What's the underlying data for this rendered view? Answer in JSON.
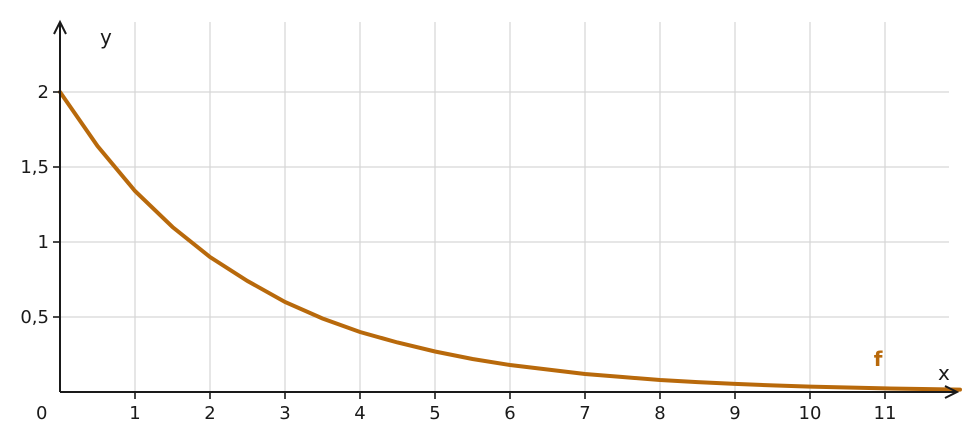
{
  "chart_data": {
    "type": "line",
    "xlabel": "x",
    "ylabel": "y",
    "xlim": [
      0,
      12
    ],
    "ylim": [
      0,
      2.5
    ],
    "origin_label": "0",
    "x_ticks": [
      1,
      2,
      3,
      4,
      5,
      6,
      7,
      8,
      9,
      10,
      11
    ],
    "x_tick_labels": [
      "1",
      "2",
      "3",
      "4",
      "5",
      "6",
      "7",
      "8",
      "9",
      "10",
      "11"
    ],
    "y_ticks": [
      0.5,
      1,
      1.5,
      2
    ],
    "y_tick_labels": [
      "0,5",
      "1",
      "1,5",
      "2"
    ],
    "grid": true,
    "series": [
      {
        "name": "f",
        "color": "#b8690b",
        "x": [
          0,
          0.5,
          1,
          1.5,
          2,
          2.5,
          3,
          3.5,
          4,
          4.5,
          5,
          5.5,
          6,
          6.5,
          7,
          7.5,
          8,
          8.5,
          9,
          9.5,
          10,
          10.5,
          11,
          11.5,
          12
        ],
        "y": [
          2,
          1.64,
          1.34,
          1.1,
          0.9,
          0.74,
          0.6,
          0.49,
          0.4,
          0.33,
          0.27,
          0.22,
          0.18,
          0.15,
          0.12,
          0.1,
          0.08,
          0.066,
          0.054,
          0.044,
          0.036,
          0.03,
          0.024,
          0.02,
          0.016
        ]
      }
    ]
  }
}
